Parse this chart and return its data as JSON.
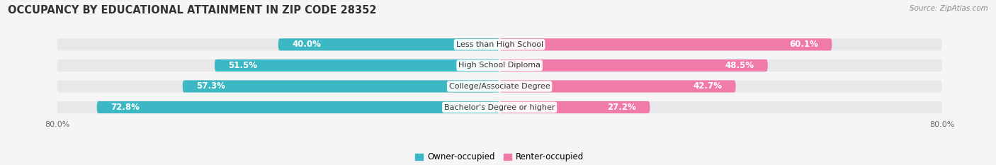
{
  "title": "OCCUPANCY BY EDUCATIONAL ATTAINMENT IN ZIP CODE 28352",
  "source": "Source: ZipAtlas.com",
  "categories": [
    "Less than High School",
    "High School Diploma",
    "College/Associate Degree",
    "Bachelor's Degree or higher"
  ],
  "owner_values": [
    40.0,
    51.5,
    57.3,
    72.8
  ],
  "renter_values": [
    60.1,
    48.5,
    42.7,
    27.2
  ],
  "owner_color": "#3BB8C3",
  "renter_color": "#F07BA8",
  "renter_color_light": "#F5A8C8",
  "owner_label": "Owner-occupied",
  "renter_label": "Renter-occupied",
  "bar_bg_color": "#e8e8eb",
  "bar_bg_shadow": "#d0d0d4",
  "background_color": "#f5f5f5",
  "title_fontsize": 10.5,
  "tick_fontsize": 8,
  "label_fontsize": 8,
  "value_fontsize": 8.5,
  "x_axis_max": 80.0,
  "inside_threshold": 15.0
}
